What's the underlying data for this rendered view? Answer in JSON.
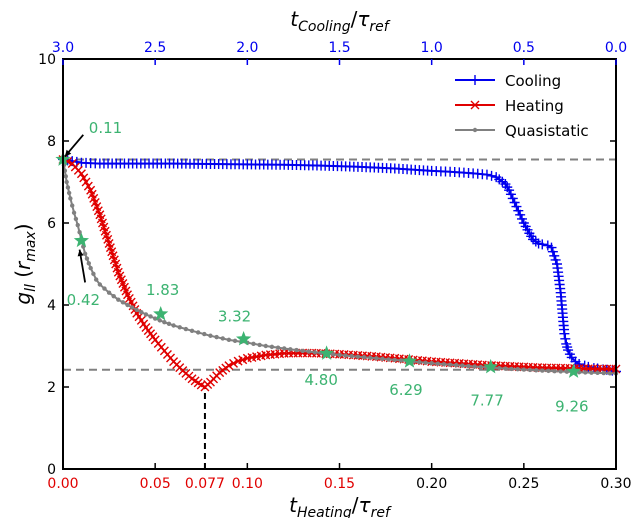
{
  "chart_data": {
    "type": "line",
    "title": "",
    "xlabel": "t_Heating/τ_ref",
    "x2label": "t_Cooling/τ_ref",
    "ylabel": "g_ll (r_max)",
    "xlim": [
      0,
      0.3
    ],
    "x2lim": [
      3.0,
      0.0
    ],
    "ylim": [
      0,
      10
    ],
    "grid": false,
    "legend_position": "top-right",
    "x_ticks": [
      {
        "value": 0.0,
        "label": "0.00",
        "color": "#e00000"
      },
      {
        "value": 0.05,
        "label": "0.05",
        "color": "#e00000"
      },
      {
        "value": 0.077,
        "label": "0.077",
        "color": "#e00000"
      },
      {
        "value": 0.1,
        "label": "0.10",
        "color": "#e00000"
      },
      {
        "value": 0.15,
        "label": "0.15",
        "color": "#e00000"
      },
      {
        "value": 0.2,
        "label": "0.20",
        "color": "#000000"
      },
      {
        "value": 0.25,
        "label": "0.25",
        "color": "#000000"
      },
      {
        "value": 0.3,
        "label": "0.30",
        "color": "#000000"
      }
    ],
    "x2_ticks": [
      {
        "value": 3.0,
        "label": "3.0"
      },
      {
        "value": 2.5,
        "label": "2.5"
      },
      {
        "value": 2.0,
        "label": "2.0"
      },
      {
        "value": 1.5,
        "label": "1.5"
      },
      {
        "value": 1.0,
        "label": "1.0"
      },
      {
        "value": 0.5,
        "label": "0.5"
      },
      {
        "value": 0.0,
        "label": "0.0"
      }
    ],
    "y_ticks": [
      0,
      2,
      4,
      6,
      8,
      10
    ],
    "series": [
      {
        "name": "Cooling",
        "color": "#0000ee",
        "marker": "plus",
        "axis": "top",
        "x": [
          3.0,
          2.9,
          2.8,
          2.6,
          2.4,
          2.2,
          2.0,
          1.8,
          1.6,
          1.4,
          1.2,
          1.0,
          0.9,
          0.8,
          0.75,
          0.7,
          0.65,
          0.6,
          0.58,
          0.55,
          0.52,
          0.5,
          0.47,
          0.45,
          0.42,
          0.4,
          0.37,
          0.35,
          0.32,
          0.3,
          0.29,
          0.28,
          0.27,
          0.26,
          0.25,
          0.24,
          0.22,
          0.2,
          0.17,
          0.15,
          0.12,
          0.1,
          0.07,
          0.05,
          0.02,
          0.0
        ],
        "y": [
          7.55,
          7.47,
          7.45,
          7.45,
          7.45,
          7.44,
          7.43,
          7.42,
          7.4,
          7.37,
          7.33,
          7.27,
          7.25,
          7.22,
          7.2,
          7.18,
          7.12,
          6.95,
          6.8,
          6.5,
          6.2,
          6.0,
          5.75,
          5.6,
          5.5,
          5.48,
          5.45,
          5.4,
          5.0,
          4.3,
          3.8,
          3.3,
          3.05,
          2.9,
          2.8,
          2.72,
          2.62,
          2.56,
          2.52,
          2.49,
          2.46,
          2.45,
          2.43,
          2.42,
          2.4,
          2.38
        ]
      },
      {
        "name": "Heating",
        "color": "#e00000",
        "marker": "x",
        "axis": "bottom",
        "x": [
          0.0,
          0.005,
          0.01,
          0.015,
          0.02,
          0.025,
          0.03,
          0.035,
          0.04,
          0.045,
          0.05,
          0.055,
          0.06,
          0.065,
          0.07,
          0.075,
          0.077,
          0.08,
          0.085,
          0.09,
          0.095,
          0.1,
          0.11,
          0.12,
          0.13,
          0.14,
          0.15,
          0.16,
          0.17,
          0.18,
          0.19,
          0.2,
          0.21,
          0.22,
          0.23,
          0.24,
          0.25,
          0.26,
          0.27,
          0.28,
          0.29,
          0.3
        ],
        "y": [
          7.55,
          7.45,
          7.2,
          6.8,
          6.2,
          5.5,
          4.8,
          4.25,
          3.8,
          3.45,
          3.15,
          2.88,
          2.62,
          2.4,
          2.2,
          2.05,
          2.0,
          2.12,
          2.35,
          2.52,
          2.63,
          2.7,
          2.78,
          2.82,
          2.83,
          2.82,
          2.8,
          2.77,
          2.74,
          2.7,
          2.66,
          2.62,
          2.59,
          2.56,
          2.53,
          2.51,
          2.49,
          2.47,
          2.46,
          2.45,
          2.44,
          2.44
        ]
      },
      {
        "name": "Quasistatic",
        "color": "#808080",
        "marker": "dot",
        "axis": "bottom",
        "x": [
          0.0,
          0.002,
          0.004,
          0.006,
          0.008,
          0.01,
          0.012,
          0.015,
          0.018,
          0.02,
          0.025,
          0.03,
          0.035,
          0.04,
          0.045,
          0.05,
          0.055,
          0.06,
          0.07,
          0.08,
          0.09,
          0.1,
          0.11,
          0.12,
          0.13,
          0.14,
          0.15,
          0.16,
          0.18,
          0.2,
          0.22,
          0.24,
          0.26,
          0.28,
          0.3
        ],
        "y": [
          7.55,
          7.0,
          6.6,
          6.25,
          5.95,
          5.6,
          5.25,
          4.9,
          4.62,
          4.5,
          4.3,
          4.13,
          4.0,
          3.88,
          3.77,
          3.67,
          3.58,
          3.5,
          3.37,
          3.25,
          3.15,
          3.08,
          3.0,
          2.94,
          2.88,
          2.83,
          2.78,
          2.74,
          2.66,
          2.58,
          2.51,
          2.45,
          2.4,
          2.36,
          2.33
        ]
      }
    ],
    "stars": [
      {
        "x": 0.0,
        "y": 7.55
      },
      {
        "x": 0.01,
        "y": 5.57
      },
      {
        "x": 0.053,
        "y": 3.78
      },
      {
        "x": 0.098,
        "y": 3.17
      },
      {
        "x": 0.143,
        "y": 2.82
      },
      {
        "x": 0.188,
        "y": 2.63
      },
      {
        "x": 0.232,
        "y": 2.49
      },
      {
        "x": 0.277,
        "y": 2.38
      }
    ],
    "reference_lines": [
      {
        "orientation": "horizontal",
        "y": 7.55,
        "color": "#808080",
        "style": "dashed"
      },
      {
        "orientation": "horizontal",
        "y": 2.42,
        "color": "#808080",
        "style": "dashed"
      },
      {
        "orientation": "vertical",
        "x": 0.077,
        "y_from": 0,
        "y_to": 2.0,
        "color": "#000000",
        "style": "dashed"
      }
    ],
    "annotations": [
      {
        "text": "0.11",
        "x": 0.014,
        "y": 8.2,
        "color": "#3cb371"
      },
      {
        "text": "0.42",
        "x": 0.002,
        "y": 4.0,
        "color": "#3cb371"
      },
      {
        "text": "1.83",
        "x": 0.045,
        "y": 4.25,
        "color": "#3cb371"
      },
      {
        "text": "3.32",
        "x": 0.084,
        "y": 3.6,
        "color": "#3cb371"
      },
      {
        "text": "4.80",
        "x": 0.131,
        "y": 2.05,
        "color": "#3cb371"
      },
      {
        "text": "6.29",
        "x": 0.177,
        "y": 1.8,
        "color": "#3cb371"
      },
      {
        "text": "7.77",
        "x": 0.221,
        "y": 1.55,
        "color": "#3cb371"
      },
      {
        "text": "9.26",
        "x": 0.267,
        "y": 1.4,
        "color": "#3cb371"
      }
    ],
    "arrows": [
      {
        "from": [
          0.011,
          8.15
        ],
        "to": [
          0.001,
          7.62
        ]
      },
      {
        "from": [
          0.012,
          4.55
        ],
        "to": [
          0.009,
          5.35
        ]
      }
    ]
  },
  "colors": {
    "star": "#3cb371",
    "top_axis": "#0000ee",
    "text_green": "#3cb371"
  }
}
